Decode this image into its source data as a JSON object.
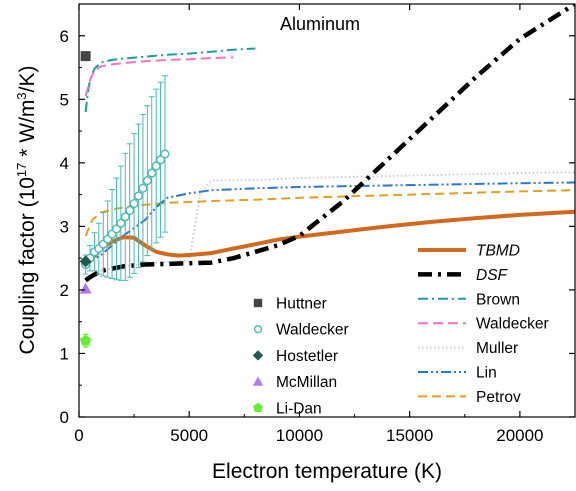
{
  "chart_data": {
    "type": "line",
    "annotation": "Aluminum",
    "xlabel": "Electron temperature (K)",
    "ylabel_main": "Coupling factor (10",
    "ylabel_sup1": "17",
    "ylabel_mid": " * W/m",
    "ylabel_sup2": "3",
    "ylabel_end": "/K)",
    "xlim": [
      0,
      22500
    ],
    "ylim": [
      0,
      6.5
    ],
    "x_ticks": [
      0,
      5000,
      10000,
      15000,
      20000
    ],
    "x_tick_labels": [
      "0",
      "5000",
      "10000",
      "15000",
      "20000"
    ],
    "y_ticks": [
      0,
      1,
      2,
      3,
      4,
      5,
      6
    ],
    "y_tick_labels": [
      "0",
      "1",
      "2",
      "3",
      "4",
      "5",
      "6"
    ],
    "grid": false,
    "legend_left": {
      "placement": "bottom-center",
      "entries": [
        {
          "name": "Huttner",
          "marker": "square",
          "color": "#444444"
        },
        {
          "name": "Waldecker",
          "marker": "open-circle",
          "color": "#4cb8b0"
        },
        {
          "name": "Hostetler",
          "marker": "diamond",
          "color": "#1f5a50"
        },
        {
          "name": "McMillan",
          "marker": "triangle",
          "color": "#b07cf0"
        },
        {
          "name": "Li-Dan",
          "marker": "pentagon",
          "color": "#66ee33"
        }
      ]
    },
    "legend_right": {
      "placement": "right",
      "entries": [
        {
          "name": "TBMD",
          "style": "solid",
          "color": "#d2691e",
          "italic": true
        },
        {
          "name": "DSF",
          "style": "dashdot",
          "color": "#000000",
          "italic": true
        },
        {
          "name": "Brown",
          "style": "dashdot",
          "color": "#1a9e96",
          "italic": false
        },
        {
          "name": "Waldecker",
          "style": "dashed",
          "color": "#f075c0",
          "italic": false
        },
        {
          "name": "Muller",
          "style": "dotted",
          "color": "#c8c8e0",
          "italic": false
        },
        {
          "name": "Lin",
          "style": "dashdotdot",
          "color": "#2a78c8",
          "italic": false
        },
        {
          "name": "Petrov",
          "style": "dashed",
          "color": "#e0a020",
          "italic": false
        }
      ]
    },
    "points": [
      {
        "name": "Huttner",
        "x": 300,
        "y": 5.68
      },
      {
        "name": "Hostetler",
        "x": 300,
        "y": 2.45
      },
      {
        "name": "McMillan",
        "x": 300,
        "y": 2.02
      },
      {
        "name": "Li-Dan",
        "x": 300,
        "y": 1.2,
        "yerr": 0.1
      }
    ],
    "waldecker_exp": {
      "x": [
        300,
        500,
        700,
        900,
        1100,
        1300,
        1500,
        1700,
        1900,
        2100,
        2300,
        2500,
        2700,
        2900,
        3100,
        3300,
        3500,
        3700,
        3900
      ],
      "y": [
        2.4,
        2.5,
        2.6,
        2.65,
        2.72,
        2.8,
        2.88,
        2.96,
        3.05,
        3.15,
        3.25,
        3.36,
        3.48,
        3.6,
        3.72,
        3.84,
        3.95,
        4.05,
        4.14
      ],
      "yerr": [
        0.15,
        0.2,
        0.3,
        0.4,
        0.5,
        0.6,
        0.7,
        0.8,
        0.9,
        1.0,
        1.05,
        1.1,
        1.13,
        1.16,
        1.18,
        1.2,
        1.21,
        1.22,
        1.23
      ]
    },
    "series": [
      {
        "name": "TBMD",
        "x": [
          300,
          600,
          1000,
          1500,
          2000,
          2500,
          3000,
          3500,
          4000,
          4500,
          5000,
          6000,
          7000,
          8000,
          9000,
          10000,
          12000,
          14000,
          16000,
          18000,
          20000,
          22500
        ],
        "y": [
          2.35,
          2.5,
          2.65,
          2.76,
          2.83,
          2.82,
          2.7,
          2.6,
          2.56,
          2.54,
          2.55,
          2.58,
          2.65,
          2.72,
          2.79,
          2.84,
          2.92,
          3.0,
          3.07,
          3.13,
          3.18,
          3.23
        ]
      },
      {
        "name": "DSF",
        "x": [
          300,
          500,
          1000,
          2000,
          3000,
          4000,
          5000,
          6000,
          7000,
          8000,
          9000,
          10000,
          12000,
          14000,
          16000,
          18000,
          20000,
          22500
        ],
        "y": [
          2.15,
          2.2,
          2.3,
          2.37,
          2.4,
          2.41,
          2.42,
          2.43,
          2.5,
          2.6,
          2.7,
          2.85,
          3.4,
          4.05,
          4.7,
          5.35,
          5.95,
          6.5
        ]
      },
      {
        "name": "Brown",
        "x": [
          300,
          400,
          500,
          700,
          1000,
          1500,
          2000,
          3000,
          4000,
          5000,
          6000,
          7000,
          8000
        ],
        "y": [
          4.8,
          5.1,
          5.3,
          5.48,
          5.58,
          5.62,
          5.64,
          5.67,
          5.7,
          5.72,
          5.75,
          5.78,
          5.8
        ]
      },
      {
        "name": "Waldecker",
        "x": [
          300,
          500,
          700,
          1000,
          1500,
          2000,
          3000,
          4000,
          5000,
          6000,
          7000
        ],
        "y": [
          5.05,
          5.3,
          5.45,
          5.52,
          5.55,
          5.57,
          5.6,
          5.62,
          5.63,
          5.65,
          5.66
        ]
      },
      {
        "name": "Muller",
        "x": [
          300,
          1000,
          2000,
          3000,
          4000,
          5000,
          5500,
          6000,
          8000,
          10000,
          15000,
          20000,
          22500
        ],
        "y": [
          2.2,
          2.3,
          2.37,
          2.42,
          2.44,
          2.46,
          3.5,
          3.72,
          3.73,
          3.76,
          3.8,
          3.84,
          3.85
        ]
      },
      {
        "name": "Lin",
        "x": [
          300,
          1000,
          2000,
          3000,
          3500,
          4000,
          5000,
          6000,
          8000,
          10000,
          15000,
          20000,
          22500
        ],
        "y": [
          2.4,
          2.55,
          2.85,
          3.1,
          3.3,
          3.45,
          3.52,
          3.57,
          3.6,
          3.62,
          3.65,
          3.68,
          3.69
        ]
      },
      {
        "name": "Petrov",
        "x": [
          300,
          600,
          1000,
          2000,
          3000,
          4000,
          6000,
          8000,
          10000,
          15000,
          20000,
          22500
        ],
        "y": [
          2.85,
          3.1,
          3.22,
          3.3,
          3.34,
          3.37,
          3.4,
          3.42,
          3.45,
          3.5,
          3.55,
          3.57
        ]
      }
    ]
  }
}
